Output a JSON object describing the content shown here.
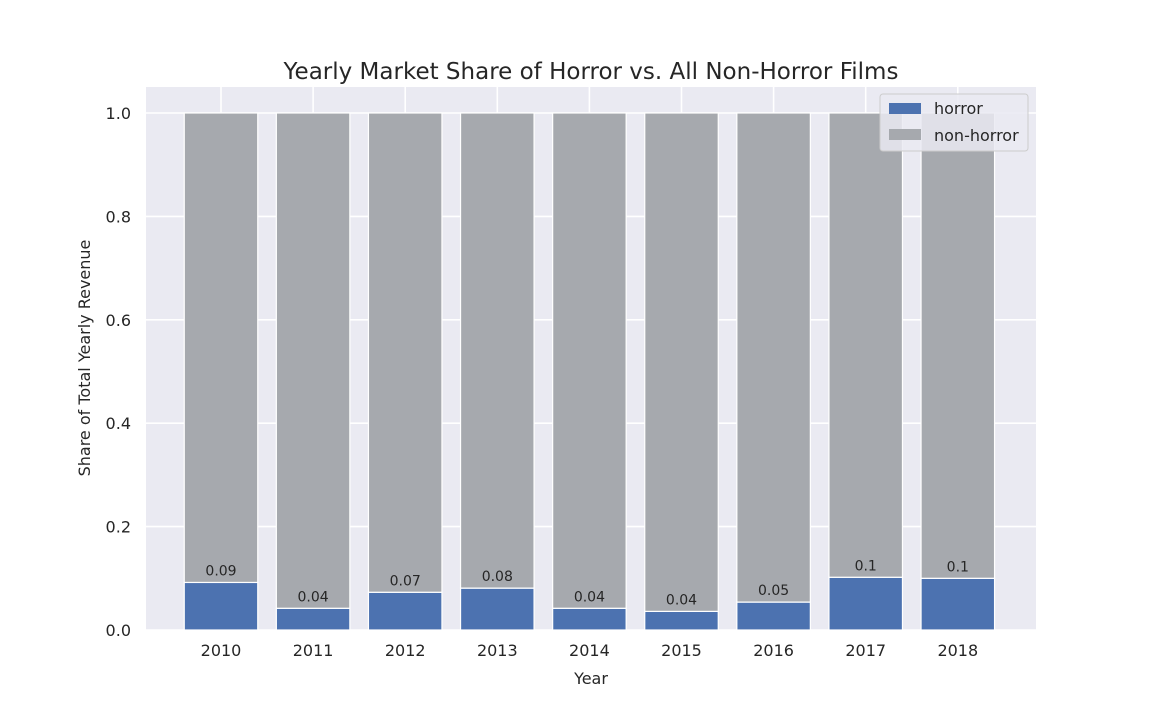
{
  "chart_data": {
    "type": "bar",
    "stacked": true,
    "title": "Yearly Market Share of Horror vs. All Non-Horror Films",
    "xlabel": "Year",
    "ylabel": "Share of Total Yearly Revenue",
    "categories": [
      "2010",
      "2011",
      "2012",
      "2013",
      "2014",
      "2015",
      "2016",
      "2017",
      "2018"
    ],
    "series": [
      {
        "name": "horror",
        "color": "#4c72b0",
        "values": [
          0.092,
          0.042,
          0.073,
          0.081,
          0.042,
          0.036,
          0.054,
          0.102,
          0.1
        ]
      },
      {
        "name": "non-horror",
        "color": "#a6a9ae",
        "values": [
          0.908,
          0.958,
          0.927,
          0.919,
          0.958,
          0.964,
          0.946,
          0.898,
          0.9
        ]
      }
    ],
    "data_labels": [
      "0.09",
      "0.04",
      "0.07",
      "0.08",
      "0.04",
      "0.04",
      "0.05",
      "0.1",
      "0.1"
    ],
    "yticks": [
      "0.0",
      "0.2",
      "0.4",
      "0.6",
      "0.8",
      "1.0"
    ],
    "ylim": [
      0,
      1.05
    ],
    "grid": true,
    "legend_position": "top-right",
    "background_color": "#eaeaf2"
  }
}
